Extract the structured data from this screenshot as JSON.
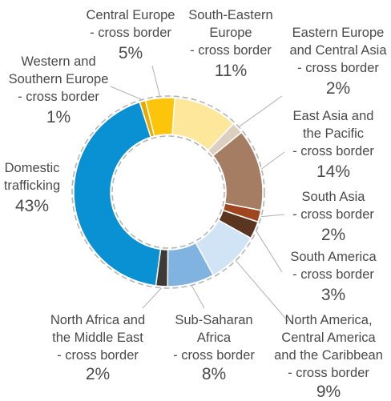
{
  "chart_data": {
    "type": "pie",
    "donut": true,
    "categories": [
      "Central Europe - cross border",
      "South-Eastern Europe - cross border",
      "Eastern Europe and Central Asia - cross border",
      "East Asia and the Pacific - cross border",
      "South Asia - cross border",
      "South America - cross border",
      "North America, Central America and the Caribbean - cross border",
      "Sub-Saharan Africa - cross border",
      "North Africa and the Middle East - cross border",
      "Domestic trafficking",
      "Western and Southern Europe - cross border"
    ],
    "values": [
      5,
      11,
      2,
      14,
      2,
      3,
      9,
      8,
      2,
      43,
      1
    ],
    "labels": [
      {
        "lines": [
          "Central Europe",
          "- cross border"
        ],
        "pct": "5%",
        "color": "#fcc50b"
      },
      {
        "lines": [
          "South-Eastern",
          "Europe",
          "- cross border"
        ],
        "pct": "11%",
        "color": "#fde79a"
      },
      {
        "lines": [
          "Eastern Europe",
          "and Central Asia",
          "- cross border"
        ],
        "pct": "2%",
        "color": "#dccfbf"
      },
      {
        "lines": [
          "East Asia and",
          "the Pacific",
          "- cross border"
        ],
        "pct": "14%",
        "color": "#a47d63"
      },
      {
        "lines": [
          "South Asia",
          "- cross border"
        ],
        "pct": "2%",
        "color": "#a0461e"
      },
      {
        "lines": [
          "South America",
          "- cross border"
        ],
        "pct": "3%",
        "color": "#5a3621"
      },
      {
        "lines": [
          "North America,",
          "Central America",
          "and the Caribbean",
          "- cross border"
        ],
        "pct": "9%",
        "color": "#d0e4f5"
      },
      {
        "lines": [
          "Sub-Saharan",
          "Africa",
          "- cross border"
        ],
        "pct": "8%",
        "color": "#80b3df"
      },
      {
        "lines": [
          "North Africa and",
          "the Middle East",
          "- cross border"
        ],
        "pct": "2%",
        "color": "#3d3a38"
      },
      {
        "lines": [
          "Domestic",
          "trafficking"
        ],
        "pct": "43%",
        "color": "#0a91d3"
      },
      {
        "lines": [
          "Western and",
          "Southern Europe",
          "- cross border"
        ],
        "pct": "1%",
        "color": "#e9aa00"
      }
    ]
  }
}
